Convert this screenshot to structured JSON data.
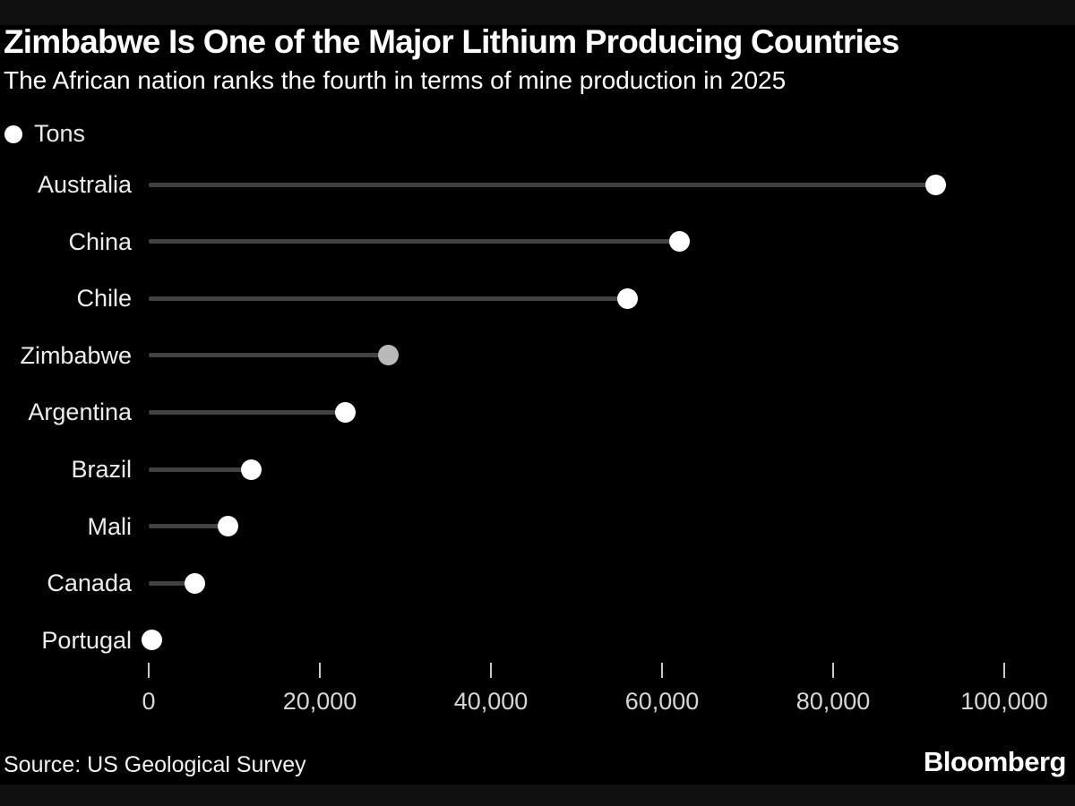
{
  "header": {
    "title": "Zimbabwe Is One of the Major Lithium Producing Countries",
    "subtitle": "The African nation ranks the fourth in terms of mine production in 2025"
  },
  "legend": {
    "label": "Tons"
  },
  "footer": {
    "source": "Source: US Geological Survey",
    "brand": "Bloomberg"
  },
  "colors": {
    "background": "#000000",
    "letterbox": "#101010",
    "dot": "#ffffff",
    "dot_highlight": "#b9b9b9",
    "stem": "#424242",
    "category_label": "#ededed",
    "tick_mark": "#c9c9c9",
    "tick_label": "#d6d6d6"
  },
  "chart_data": {
    "type": "scatter",
    "subtype": "horizontal-lollipop",
    "title": "Zimbabwe Is One of the Major Lithium Producing Countries",
    "subtitle": "The African nation ranks the fourth in terms of mine production in 2025",
    "unit_legend": "Tons",
    "categories": [
      "Australia",
      "China",
      "Chile",
      "Zimbabwe",
      "Argentina",
      "Brazil",
      "Mali",
      "Canada",
      "Portugal"
    ],
    "values": [
      92000,
      62000,
      56000,
      28000,
      23000,
      12000,
      9300,
      5400,
      400
    ],
    "highlight_category": "Zimbabwe",
    "xlabel": "",
    "ylabel": "",
    "xlim": [
      0,
      100000
    ],
    "xticks": [
      0,
      20000,
      40000,
      60000,
      80000,
      100000
    ],
    "xtick_labels": [
      "0",
      "20,000",
      "40,000",
      "60,000",
      "80,000",
      "100,000"
    ],
    "grid": false,
    "legend_position": "top-left",
    "source": "US Geological Survey"
  }
}
